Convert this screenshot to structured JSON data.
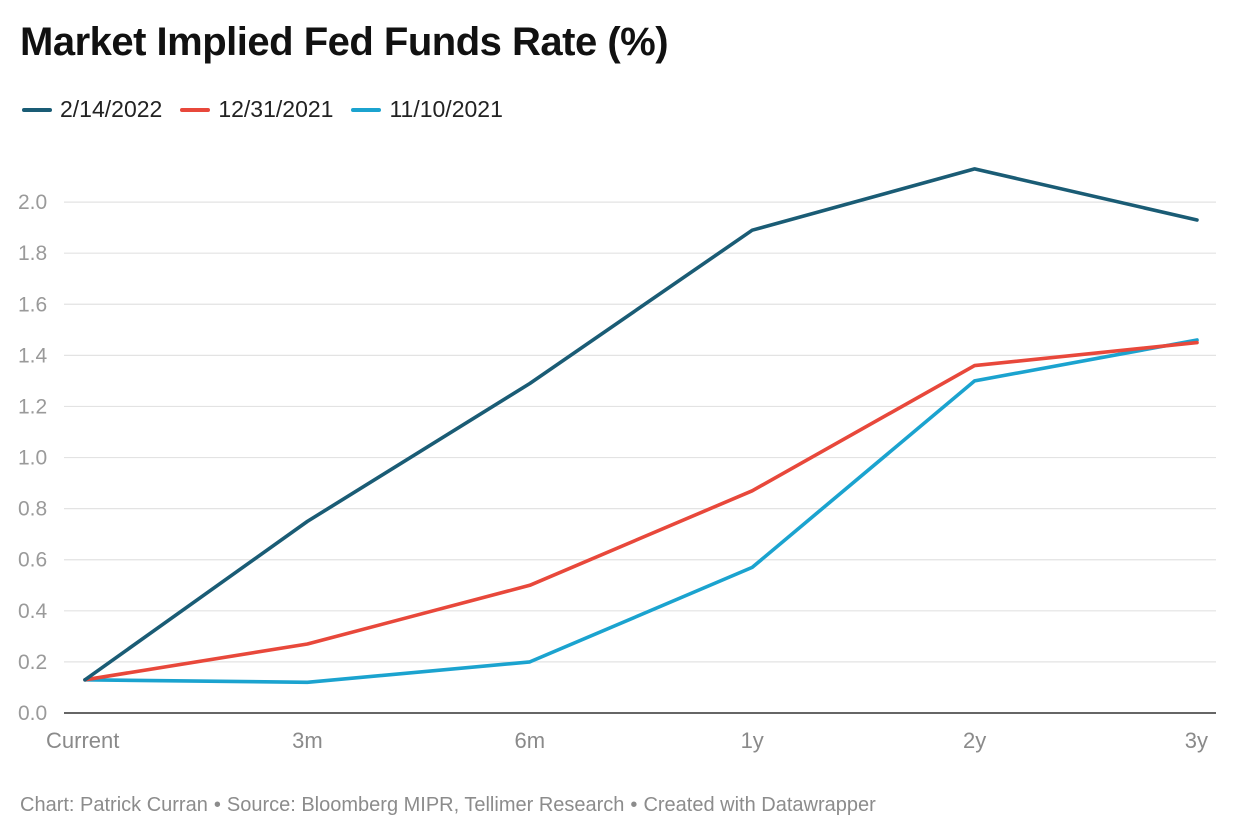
{
  "chart_data": {
    "type": "line",
    "title": "Market Implied Fed Funds Rate (%)",
    "categories": [
      "Current",
      "3m",
      "6m",
      "1y",
      "2y",
      "3y"
    ],
    "ylim": [
      0,
      2.2
    ],
    "yticks": [
      "0.0",
      "0.2",
      "0.4",
      "0.6",
      "0.8",
      "1.0",
      "1.2",
      "1.4",
      "1.6",
      "1.8",
      "2.0"
    ],
    "grid": true,
    "legend_position": "top-left",
    "series": [
      {
        "name": "2/14/2022",
        "color": "#1a5c75",
        "values": [
          0.13,
          0.75,
          1.29,
          1.89,
          2.13,
          1.93
        ]
      },
      {
        "name": "12/31/2021",
        "color": "#e8483b",
        "values": [
          0.13,
          0.27,
          0.5,
          0.87,
          1.36,
          1.45
        ]
      },
      {
        "name": "11/10/2021",
        "color": "#1ba3cf",
        "values": [
          0.13,
          0.12,
          0.2,
          0.57,
          1.3,
          1.46
        ]
      }
    ],
    "xlabel": "",
    "ylabel": ""
  },
  "footer": {
    "chart_by": "Chart: Patrick Curran",
    "source": "Source: Bloomberg MIPR, Tellimer Research",
    "created": "Created with Datawrapper",
    "separator": "•"
  }
}
